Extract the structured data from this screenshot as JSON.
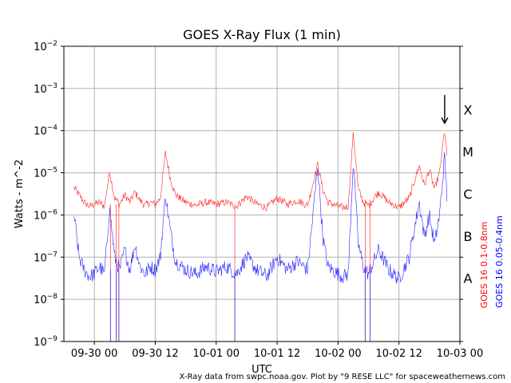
{
  "chart_data": {
    "type": "line",
    "title": "GOES X-Ray Flux (1 min)",
    "xlabel": "UTC",
    "ylabel": "Watts - m^-2",
    "yscale": "log",
    "ylim": [
      1e-09,
      0.01
    ],
    "y_ticks": [
      {
        "base": "10",
        "exp": "−9",
        "value": 1e-09
      },
      {
        "base": "10",
        "exp": "−8",
        "value": 1e-08
      },
      {
        "base": "10",
        "exp": "−7",
        "value": 1e-07
      },
      {
        "base": "10",
        "exp": "−6",
        "value": 1e-06
      },
      {
        "base": "10",
        "exp": "−5",
        "value": 1e-05
      },
      {
        "base": "10",
        "exp": "−4",
        "value": 0.0001
      },
      {
        "base": "10",
        "exp": "−3",
        "value": 0.001
      },
      {
        "base": "10",
        "exp": "−2",
        "value": 0.01
      }
    ],
    "xlim": [
      "09-29 18:00",
      "10-03 00:00"
    ],
    "x_ticks": [
      {
        "label": "09-30 00",
        "value": "09-30 00:00"
      },
      {
        "label": "09-30 12",
        "value": "09-30 12:00"
      },
      {
        "label": "10-01 00",
        "value": "10-01 00:00"
      },
      {
        "label": "10-01 12",
        "value": "10-01 12:00"
      },
      {
        "label": "10-02 00",
        "value": "10-02 00:00"
      },
      {
        "label": "10-02 12",
        "value": "10-02 12:00"
      },
      {
        "label": "10-03 00",
        "value": "10-03 00:00"
      }
    ],
    "grid": true,
    "flare_classes": [
      {
        "label": "A",
        "value": 3.16e-08
      },
      {
        "label": "B",
        "value": 3.16e-07
      },
      {
        "label": "C",
        "value": 3.16e-06
      },
      {
        "label": "M",
        "value": 3.16e-05
      },
      {
        "label": "X",
        "value": 0.000316
      }
    ],
    "series": [
      {
        "name": "GOES 16 0.1-0.8nm",
        "color": "#ff0000",
        "points": [
          [
            "09-29 20:00",
            4.5e-06
          ],
          [
            "09-29 21:00",
            3e-06
          ],
          [
            "09-29 22:00",
            2e-06
          ],
          [
            "09-29 23:00",
            1.6e-06
          ],
          [
            "09-30 00:00",
            1.8e-06
          ],
          [
            "09-30 01:00",
            2e-06
          ],
          [
            "09-30 02:00",
            1.6e-06
          ],
          [
            "09-30 03:00",
            1.1e-05
          ],
          [
            "09-30 04:00",
            2.5e-06
          ],
          [
            "09-30 05:00",
            1.8e-06
          ],
          [
            "09-30 06:00",
            3e-06
          ],
          [
            "09-30 07:00",
            2e-06
          ],
          [
            "09-30 08:00",
            3.5e-06
          ],
          [
            "09-30 09:00",
            2.2e-06
          ],
          [
            "09-30 10:00",
            1.7e-06
          ],
          [
            "09-30 11:00",
            2e-06
          ],
          [
            "09-30 12:00",
            1.8e-06
          ],
          [
            "09-30 13:00",
            2.5e-06
          ],
          [
            "09-30 14:00",
            3e-05
          ],
          [
            "09-30 15:00",
            7e-06
          ],
          [
            "09-30 16:00",
            3e-06
          ],
          [
            "09-30 18:00",
            2e-06
          ],
          [
            "09-30 20:00",
            1.7e-06
          ],
          [
            "09-30 22:00",
            2e-06
          ],
          [
            "10-01 00:00",
            1.8e-06
          ],
          [
            "10-01 02:00",
            2e-06
          ],
          [
            "10-01 04:00",
            1.6e-06
          ],
          [
            "10-01 06:00",
            2.8e-06
          ],
          [
            "10-01 08:00",
            1.8e-06
          ],
          [
            "10-01 10:00",
            1.5e-06
          ],
          [
            "10-01 12:00",
            2.5e-06
          ],
          [
            "10-01 14:00",
            1.8e-06
          ],
          [
            "10-01 16:00",
            2.2e-06
          ],
          [
            "10-01 18:00",
            1.7e-06
          ],
          [
            "10-01 20:00",
            1.6e-05
          ],
          [
            "10-01 21:00",
            4e-06
          ],
          [
            "10-01 22:00",
            2e-06
          ],
          [
            "10-02 00:00",
            1.6e-06
          ],
          [
            "10-02 01:00",
            1.5e-06
          ],
          [
            "10-02 02:00",
            1.6e-06
          ],
          [
            "10-02 03:00",
            9e-05
          ],
          [
            "10-02 04:00",
            4e-06
          ],
          [
            "10-02 05:00",
            2e-06
          ],
          [
            "10-02 06:00",
            1.7e-06
          ],
          [
            "10-02 08:00",
            3.5e-06
          ],
          [
            "10-02 10:00",
            2e-06
          ],
          [
            "10-02 12:00",
            1.5e-06
          ],
          [
            "10-02 14:00",
            2.5e-06
          ],
          [
            "10-02 16:00",
            1.5e-05
          ],
          [
            "10-02 17:00",
            5e-06
          ],
          [
            "10-02 18:00",
            1.2e-05
          ],
          [
            "10-02 19:00",
            4e-06
          ],
          [
            "10-02 20:00",
            1e-05
          ],
          [
            "10-02 21:00",
            0.000105
          ],
          [
            "10-02 21:30",
            2e-05
          ]
        ]
      },
      {
        "name": "GOES 16 0.05-0.4nm",
        "color": "#0000ff",
        "points": [
          [
            "09-29 20:00",
            1e-06
          ],
          [
            "09-29 21:00",
            1e-07
          ],
          [
            "09-29 22:00",
            5e-08
          ],
          [
            "09-29 23:00",
            3.5e-08
          ],
          [
            "09-30 00:00",
            4e-08
          ],
          [
            "09-30 01:00",
            6e-08
          ],
          [
            "09-30 02:00",
            4e-08
          ],
          [
            "09-30 03:00",
            1.5e-06
          ],
          [
            "09-30 04:00",
            1e-07
          ],
          [
            "09-30 05:00",
            5e-08
          ],
          [
            "09-30 06:00",
            1.5e-07
          ],
          [
            "09-30 07:00",
            5e-08
          ],
          [
            "09-30 08:00",
            2e-07
          ],
          [
            "09-30 09:00",
            6e-08
          ],
          [
            "09-30 10:00",
            4e-08
          ],
          [
            "09-30 11:00",
            6e-08
          ],
          [
            "09-30 12:00",
            5e-08
          ],
          [
            "09-30 13:00",
            1e-07
          ],
          [
            "09-30 14:00",
            3e-06
          ],
          [
            "09-30 15:00",
            4e-07
          ],
          [
            "09-30 16:00",
            8e-08
          ],
          [
            "09-30 18:00",
            5e-08
          ],
          [
            "09-30 20:00",
            4e-08
          ],
          [
            "09-30 22:00",
            6e-08
          ],
          [
            "10-01 00:00",
            4.5e-08
          ],
          [
            "10-01 02:00",
            6e-08
          ],
          [
            "10-01 04:00",
            4e-08
          ],
          [
            "10-01 06:00",
            1e-07
          ],
          [
            "10-01 08:00",
            5e-08
          ],
          [
            "10-01 10:00",
            3.5e-08
          ],
          [
            "10-01 12:00",
            1e-07
          ],
          [
            "10-01 14:00",
            5e-08
          ],
          [
            "10-01 16:00",
            8e-08
          ],
          [
            "10-01 18:00",
            5e-08
          ],
          [
            "10-01 20:00",
            1.5e-05
          ],
          [
            "10-01 21:00",
            3e-07
          ],
          [
            "10-01 22:00",
            6e-08
          ],
          [
            "10-02 00:00",
            4e-08
          ],
          [
            "10-02 01:00",
            3.5e-08
          ],
          [
            "10-02 02:00",
            4e-08
          ],
          [
            "10-02 03:00",
            2e-05
          ],
          [
            "10-02 04:00",
            2e-07
          ],
          [
            "10-02 05:00",
            6e-08
          ],
          [
            "10-02 06:00",
            4e-08
          ],
          [
            "10-02 08:00",
            1.5e-07
          ],
          [
            "10-02 10:00",
            5e-08
          ],
          [
            "10-02 12:00",
            3e-08
          ],
          [
            "10-02 14:00",
            1e-07
          ],
          [
            "10-02 16:00",
            2e-06
          ],
          [
            "10-02 17:00",
            3e-07
          ],
          [
            "10-02 18:00",
            1e-06
          ],
          [
            "10-02 19:00",
            2e-07
          ],
          [
            "10-02 20:00",
            1e-06
          ],
          [
            "10-02 21:00",
            2.5e-05
          ],
          [
            "10-02 21:30",
            2e-06
          ]
        ]
      }
    ],
    "dropouts": [
      {
        "series": 0,
        "times": [
          "09-30 03:10",
          "09-30 04:20",
          "09-30 04:50",
          "10-01 03:40",
          "10-02 05:20",
          "10-02 06:20"
        ]
      },
      {
        "series": 1,
        "times": [
          "09-30 03:10",
          "09-30 04:20",
          "09-30 04:50",
          "10-01 03:40",
          "10-02 05:20",
          "10-02 06:20"
        ]
      }
    ],
    "arrow": {
      "time": "10-02 21:00",
      "from": 0.0007,
      "to": 0.00015
    }
  },
  "credit": "X-Ray data from swpc.noaa.gov. Plot by \"9 RESE LLC\" for spaceweathernews.com"
}
